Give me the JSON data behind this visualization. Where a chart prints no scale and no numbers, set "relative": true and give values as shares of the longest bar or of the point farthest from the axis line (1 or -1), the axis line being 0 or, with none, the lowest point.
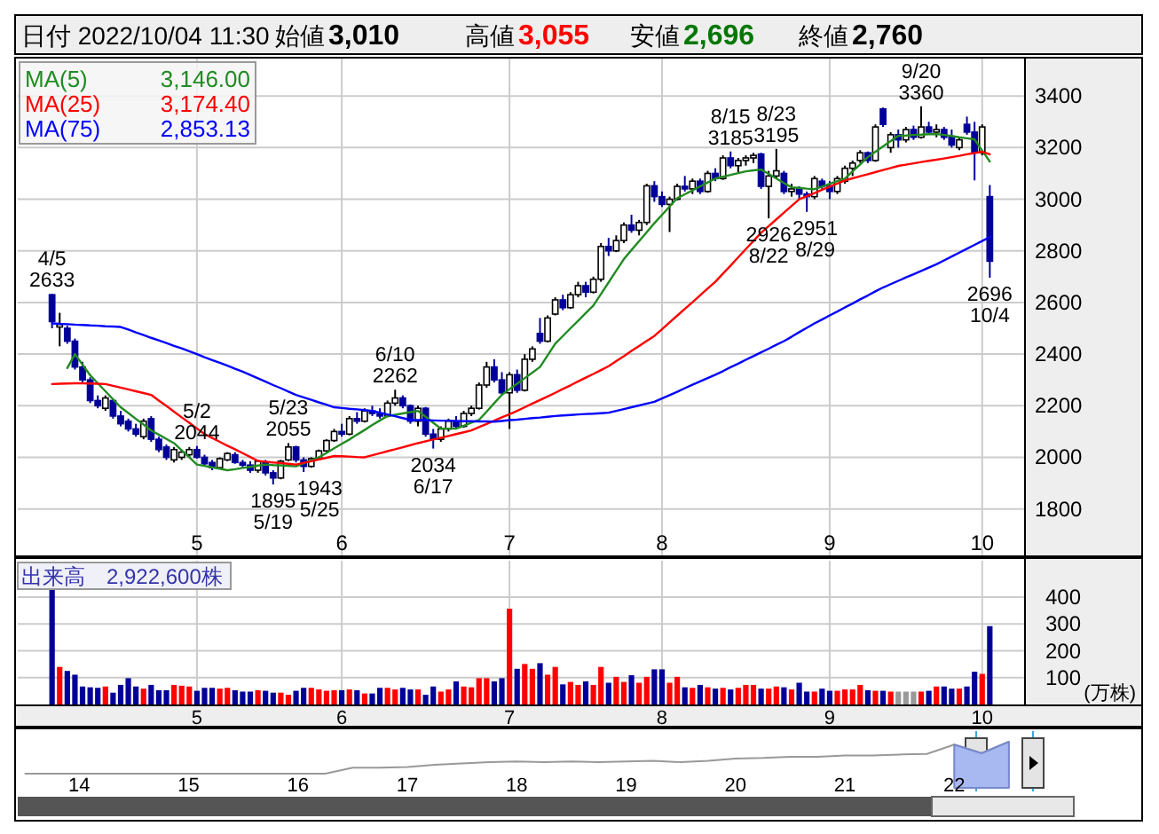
{
  "chart_data": [
    {
      "type": "candlestick",
      "grid": true,
      "ylim": [
        1620,
        3545
      ],
      "yticks": [
        1800,
        2000,
        2200,
        2400,
        2600,
        2800,
        3000,
        3200,
        3400
      ],
      "annotations": [
        "日付 2022/10/04 11:30",
        "始値",
        "3,010",
        "高値",
        "3,055",
        "安値",
        "2,696",
        "終値",
        "2,760",
        {
          "text": "4/5\n2633",
          "y": 2633
        },
        {
          "text": "5/2\n2044",
          "y": 2044
        },
        {
          "text": "1895\n5/19",
          "y": 1895
        },
        {
          "text": "5/23\n2055",
          "y": 2055
        },
        {
          "text": "1943\n5/25",
          "y": 1943
        },
        {
          "text": "6/10\n2262",
          "y": 2262
        },
        {
          "text": "2034\n6/17",
          "y": 2034
        },
        {
          "text": "8/15\n3185",
          "y": 3185
        },
        {
          "text": "2926\n8/22",
          "y": 2926
        },
        {
          "text": "8/23\n3195",
          "y": 3195
        },
        {
          "text": "2951\n8/29",
          "y": 2951
        },
        {
          "text": "9/20\n3360",
          "y": 3360
        },
        {
          "text": "2696\n10/4",
          "y": 2696
        }
      ],
      "categories": [
        null,
        null,
        null,
        null,
        null,
        null,
        null,
        null,
        null,
        null,
        null,
        null,
        null,
        null,
        null,
        null,
        null,
        null,
        null,
        "5",
        null,
        null,
        null,
        null,
        null,
        null,
        null,
        null,
        null,
        null,
        null,
        null,
        null,
        null,
        null,
        null,
        null,
        null,
        "6",
        null,
        null,
        null,
        null,
        null,
        null,
        null,
        null,
        null,
        null,
        null,
        null,
        null,
        null,
        null,
        null,
        null,
        null,
        null,
        null,
        null,
        "7",
        null,
        null,
        null,
        null,
        null,
        null,
        null,
        null,
        null,
        null,
        null,
        null,
        null,
        null,
        null,
        null,
        null,
        null,
        null,
        "8",
        null,
        null,
        null,
        null,
        null,
        null,
        null,
        null,
        null,
        null,
        null,
        null,
        null,
        null,
        null,
        null,
        null,
        null,
        null,
        null,
        null,
        "9",
        null,
        null,
        null,
        null,
        null,
        null,
        null,
        null,
        null,
        null,
        null,
        null,
        null,
        null,
        null,
        null,
        null,
        null,
        null,
        "10",
        null
      ],
      "ohlc": [
        [
          2630,
          2633,
          2500,
          2526
        ],
        [
          2505,
          2560,
          2430,
          2515
        ],
        [
          2500,
          2510,
          2440,
          2450
        ],
        [
          2450,
          2460,
          2340,
          2350
        ],
        [
          2350,
          2370,
          2290,
          2300
        ],
        [
          2300,
          2310,
          2210,
          2220
        ],
        [
          2220,
          2240,
          2190,
          2200
        ],
        [
          2190,
          2240,
          2180,
          2230
        ],
        [
          2220,
          2225,
          2150,
          2160
        ],
        [
          2160,
          2180,
          2120,
          2130
        ],
        [
          2140,
          2150,
          2100,
          2110
        ],
        [
          2110,
          2130,
          2080,
          2090
        ],
        [
          2080,
          2150,
          2070,
          2140
        ],
        [
          2150,
          2160,
          2060,
          2070
        ],
        [
          2070,
          2080,
          2020,
          2030
        ],
        [
          2040,
          2050,
          1990,
          2000
        ],
        [
          1990,
          2040,
          1980,
          2030
        ],
        [
          2000,
          2030,
          1990,
          2020
        ],
        [
          2010,
          2040,
          2000,
          2030
        ],
        [
          2030,
          2044,
          1995,
          2000
        ],
        [
          2000,
          2010,
          1970,
          1975
        ],
        [
          1980,
          1990,
          1950,
          1960
        ],
        [
          1960,
          2000,
          1955,
          1995
        ],
        [
          1990,
          2020,
          1985,
          2015
        ],
        [
          2010,
          2020,
          1975,
          1980
        ],
        [
          1980,
          1990,
          1960,
          1970
        ],
        [
          1970,
          1985,
          1940,
          1950
        ],
        [
          1950,
          1990,
          1940,
          1985
        ],
        [
          1980,
          1990,
          1930,
          1940
        ],
        [
          1940,
          1950,
          1895,
          1920
        ],
        [
          1920,
          1990,
          1915,
          1985
        ],
        [
          1990,
          2055,
          1985,
          2040
        ],
        [
          2040,
          2045,
          1980,
          1990
        ],
        [
          1990,
          2000,
          1943,
          1965
        ],
        [
          1965,
          2000,
          1960,
          1995
        ],
        [
          1995,
          2030,
          1990,
          2025
        ],
        [
          2025,
          2070,
          2020,
          2065
        ],
        [
          2065,
          2110,
          2060,
          2100
        ],
        [
          2100,
          2130,
          2080,
          2090
        ],
        [
          2090,
          2160,
          2085,
          2150
        ],
        [
          2150,
          2175,
          2130,
          2140
        ],
        [
          2140,
          2190,
          2135,
          2180
        ],
        [
          2180,
          2200,
          2160,
          2170
        ],
        [
          2170,
          2190,
          2150,
          2160
        ],
        [
          2160,
          2220,
          2155,
          2210
        ],
        [
          2210,
          2262,
          2200,
          2230
        ],
        [
          2230,
          2240,
          2190,
          2200
        ],
        [
          2200,
          2205,
          2130,
          2140
        ],
        [
          2140,
          2200,
          2120,
          2190
        ],
        [
          2190,
          2195,
          2080,
          2090
        ],
        [
          2090,
          2110,
          2034,
          2070
        ],
        [
          2070,
          2120,
          2060,
          2110
        ],
        [
          2110,
          2150,
          2100,
          2140
        ],
        [
          2140,
          2160,
          2110,
          2120
        ],
        [
          2120,
          2180,
          2115,
          2170
        ],
        [
          2170,
          2200,
          2160,
          2190
        ],
        [
          2190,
          2290,
          2185,
          2280
        ],
        [
          2280,
          2370,
          2270,
          2350
        ],
        [
          2350,
          2380,
          2290,
          2300
        ],
        [
          2300,
          2330,
          2240,
          2250
        ],
        [
          2250,
          2330,
          2110,
          2320
        ],
        [
          2320,
          2340,
          2250,
          2260
        ],
        [
          2260,
          2400,
          2255,
          2380
        ],
        [
          2380,
          2430,
          2370,
          2420
        ],
        [
          2480,
          2540,
          2440,
          2450
        ],
        [
          2450,
          2550,
          2445,
          2540
        ],
        [
          2555,
          2620,
          2550,
          2610
        ],
        [
          2610,
          2630,
          2570,
          2580
        ],
        [
          2580,
          2640,
          2575,
          2630
        ],
        [
          2630,
          2680,
          2620,
          2665
        ],
        [
          2665,
          2680,
          2620,
          2640
        ],
        [
          2640,
          2700,
          2635,
          2690
        ],
        [
          2690,
          2830,
          2680,
          2817
        ],
        [
          2817,
          2850,
          2780,
          2800
        ],
        [
          2800,
          2860,
          2795,
          2840
        ],
        [
          2840,
          2910,
          2830,
          2900
        ],
        [
          2900,
          2940,
          2870,
          2880
        ],
        [
          2880,
          2920,
          2860,
          2910
        ],
        [
          2910,
          3060,
          2900,
          3052
        ],
        [
          3052,
          3070,
          2990,
          3010
        ],
        [
          3010,
          3030,
          2970,
          2980
        ],
        [
          2980,
          3010,
          2873,
          3000
        ],
        [
          3000,
          3060,
          2995,
          3050
        ],
        [
          3050,
          3090,
          3030,
          3040
        ],
        [
          3040,
          3080,
          3020,
          3070
        ],
        [
          3070,
          3080,
          3020,
          3030
        ],
        [
          3030,
          3110,
          3025,
          3100
        ],
        [
          3100,
          3120,
          3070,
          3080
        ],
        [
          3080,
          3170,
          3075,
          3160
        ],
        [
          3160,
          3185,
          3120,
          3130
        ],
        [
          3130,
          3160,
          3100,
          3150
        ],
        [
          3150,
          3170,
          3130,
          3160
        ],
        [
          3160,
          3180,
          3140,
          3170
        ],
        [
          3175,
          3180,
          3040,
          3050
        ],
        [
          3050,
          3110,
          2926,
          3090
        ],
        [
          3090,
          3195,
          3080,
          3110
        ],
        [
          3100,
          3110,
          3020,
          3030
        ],
        [
          3030,
          3060,
          3010,
          3040
        ],
        [
          3040,
          3050,
          3000,
          3020
        ],
        [
          3020,
          3030,
          2951,
          3010
        ],
        [
          3010,
          3090,
          3000,
          3080
        ],
        [
          3070,
          3080,
          3040,
          3050
        ],
        [
          3050,
          3070,
          3000,
          3030
        ],
        [
          3030,
          3090,
          3020,
          3080
        ],
        [
          3070,
          3130,
          3060,
          3120
        ],
        [
          3120,
          3150,
          3090,
          3140
        ],
        [
          3150,
          3190,
          3140,
          3180
        ],
        [
          3180,
          3185,
          3140,
          3150
        ],
        [
          3150,
          3290,
          3145,
          3280
        ],
        [
          3350,
          3355,
          3280,
          3290
        ],
        [
          3200,
          3260,
          3180,
          3250
        ],
        [
          3250,
          3270,
          3200,
          3230
        ],
        [
          3230,
          3280,
          3220,
          3270
        ],
        [
          3270,
          3285,
          3230,
          3240
        ],
        [
          3240,
          3360,
          3235,
          3280
        ],
        [
          3280,
          3300,
          3250,
          3260
        ],
        [
          3260,
          3290,
          3240,
          3270
        ],
        [
          3270,
          3280,
          3230,
          3240
        ],
        [
          3240,
          3270,
          3200,
          3210
        ],
        [
          3200,
          3240,
          3190,
          3230
        ],
        [
          3290,
          3320,
          3250,
          3260
        ],
        [
          3260,
          3300,
          3073,
          3180
        ],
        [
          3180,
          3290,
          3170,
          3280
        ],
        [
          3010,
          3055,
          2696,
          2760
        ]
      ],
      "series": [
        {
          "type": "line",
          "name": "MA(5) 3,146.00",
          "color": "#228b22",
          "values": [
            null,
            null,
            2346,
            2400,
            2359,
            2318,
            2287,
            2256,
            2225,
            2194,
            2172,
            2149,
            2127,
            2104,
            2088,
            2071,
            2055,
            2027,
            2000,
            1972,
            1967,
            1961,
            1956,
            1950,
            1954,
            1959,
            1963,
            1968,
            1972,
            1970,
            1969,
            1967,
            1965,
            1977,
            1988,
            2000,
            2017,
            2035,
            2052,
            2069,
            2088,
            2106,
            2125,
            2143,
            2160,
            2165,
            2170,
            2175,
            2180,
            2157,
            2134,
            2111,
            2111,
            2111,
            2122,
            2134,
            2145,
            2177,
            2210,
            2242,
            2264,
            2285,
            2307,
            2328,
            2350,
            2395,
            2440,
            2470,
            2500,
            2529,
            2559,
            2588,
            2633,
            2678,
            2723,
            2768,
            2803,
            2838,
            2872,
            2907,
            2939,
            2972,
            3004,
            3019,
            3034,
            3050,
            3065,
            3080,
            3087,
            3094,
            3101,
            3108,
            3112,
            3115,
            3098,
            3080,
            3063,
            3046,
            3044,
            3041,
            3039,
            3049,
            3060,
            3070,
            3080,
            3108,
            3135,
            3163,
            3184,
            3205,
            3225,
            3246,
            3247,
            3249,
            3250,
            3252,
            3253,
            3249,
            3245,
            3240,
            3236,
            3232,
            3189,
            3146
          ]
        },
        {
          "type": "line",
          "name": "MA(25) 3,174.40",
          "color": "#ff0000",
          "values": [
            2284,
            2285,
            2286,
            2287,
            2287,
            2286,
            2285,
            2284,
            2277,
            2270,
            2263,
            2256,
            2249,
            2242,
            2220,
            2199,
            2177,
            2155,
            2134,
            2112,
            2090,
            2075,
            2060,
            2045,
            2031,
            2016,
            2001,
            1986,
            1983,
            1980,
            1978,
            1975,
            1972,
            1979,
            1985,
            1992,
            1998,
            2005,
            2004,
            2003,
            2001,
            2000,
            2008,
            2016,
            2024,
            2031,
            2039,
            2047,
            2055,
            2062,
            2069,
            2076,
            2083,
            2090,
            2097,
            2104,
            2117,
            2129,
            2142,
            2155,
            2167,
            2180,
            2194,
            2208,
            2222,
            2236,
            2250,
            2265,
            2279,
            2294,
            2309,
            2323,
            2338,
            2353,
            2373,
            2392,
            2412,
            2431,
            2451,
            2470,
            2496,
            2523,
            2549,
            2575,
            2601,
            2628,
            2654,
            2680,
            2712,
            2743,
            2775,
            2807,
            2838,
            2870,
            2896,
            2922,
            2948,
            2974,
            3000,
            3012,
            3024,
            3037,
            3049,
            3061,
            3073,
            3081,
            3089,
            3097,
            3105,
            3113,
            3121,
            3129,
            3134,
            3139,
            3144,
            3149,
            3153,
            3158,
            3163,
            3168,
            3174,
            3179,
            3184,
            3174
          ]
        },
        {
          "type": "line",
          "name": "MA(75) 2,853.13",
          "color": "#0000ff",
          "values": [
            2519,
            2517,
            2516,
            2514,
            2513,
            2511,
            2510,
            2508,
            2507,
            2505,
            2495,
            2484,
            2474,
            2463,
            2453,
            2443,
            2432,
            2422,
            2411,
            2400,
            2388,
            2377,
            2366,
            2355,
            2343,
            2332,
            2319,
            2306,
            2293,
            2280,
            2268,
            2255,
            2242,
            2232,
            2223,
            2213,
            2204,
            2194,
            2191,
            2188,
            2186,
            2183,
            2180,
            2173,
            2166,
            2159,
            2152,
            2145,
            2144,
            2144,
            2143,
            2142,
            2142,
            2141,
            2140,
            2140,
            2139,
            2139,
            2138,
            2141,
            2144,
            2146,
            2149,
            2152,
            2154,
            2157,
            2160,
            2162,
            2164,
            2166,
            2168,
            2169,
            2171,
            2173,
            2180,
            2187,
            2194,
            2201,
            2208,
            2215,
            2228,
            2241,
            2254,
            2268,
            2281,
            2294,
            2307,
            2320,
            2334,
            2349,
            2363,
            2378,
            2392,
            2407,
            2421,
            2436,
            2450,
            2467,
            2485,
            2502,
            2519,
            2534,
            2550,
            2565,
            2581,
            2596,
            2612,
            2627,
            2643,
            2658,
            2671,
            2684,
            2697,
            2709,
            2722,
            2735,
            2748,
            2763,
            2778,
            2793,
            2808,
            2823,
            2838,
            2853
          ]
        }
      ]
    },
    {
      "type": "bar",
      "title": "出来高　2,922,600株",
      "ylabel": "(万株)",
      "grid": true,
      "ylim": [
        0,
        536
      ],
      "yticks": [
        100,
        200,
        300,
        400
      ],
      "categories": [
        null,
        null,
        null,
        null,
        null,
        null,
        null,
        null,
        null,
        null,
        null,
        null,
        null,
        null,
        null,
        null,
        null,
        null,
        null,
        "5",
        null,
        null,
        null,
        null,
        null,
        null,
        null,
        null,
        null,
        null,
        null,
        null,
        null,
        null,
        null,
        null,
        null,
        null,
        "6",
        null,
        null,
        null,
        null,
        null,
        null,
        null,
        null,
        null,
        null,
        null,
        null,
        null,
        null,
        null,
        null,
        null,
        null,
        null,
        null,
        null,
        "7",
        null,
        null,
        null,
        null,
        null,
        null,
        null,
        null,
        null,
        null,
        null,
        null,
        null,
        null,
        null,
        null,
        null,
        null,
        null,
        "8",
        null,
        null,
        null,
        null,
        null,
        null,
        null,
        null,
        null,
        null,
        null,
        null,
        null,
        null,
        null,
        null,
        null,
        null,
        null,
        null,
        null,
        "9",
        null,
        null,
        null,
        null,
        null,
        null,
        null,
        null,
        null,
        null,
        null,
        null,
        null,
        null,
        null,
        null,
        null,
        null,
        null,
        "10",
        null
      ],
      "values": [
        438,
        140,
        125,
        111,
        67,
        64,
        62,
        67,
        44,
        73,
        98,
        67,
        59,
        73,
        53,
        53,
        73,
        70,
        67,
        51,
        62,
        62,
        59,
        62,
        53,
        48,
        48,
        53,
        51,
        44,
        44,
        36,
        51,
        62,
        62,
        56,
        51,
        53,
        53,
        56,
        53,
        41,
        41,
        62,
        62,
        56,
        62,
        56,
        56,
        36,
        67,
        48,
        56,
        86,
        67,
        64,
        98,
        98,
        86,
        98,
        357,
        133,
        151,
        133,
        154,
        111,
        140,
        75,
        84,
        73,
        86,
        73,
        140,
        81,
        103,
        84,
        109,
        81,
        103,
        131,
        131,
        81,
        103,
        64,
        62,
        73,
        64,
        59,
        62,
        56,
        62,
        73,
        73,
        59,
        59,
        67,
        64,
        56,
        81,
        48,
        48,
        59,
        51,
        51,
        56,
        56,
        73,
        53,
        51,
        51,
        48,
        48,
        48,
        48,
        48,
        51,
        67,
        67,
        59,
        59,
        67,
        122,
        114,
        292
      ],
      "colors": [
        "#000099",
        "#ff0000",
        "#000099",
        "#000099",
        "#000099",
        "#000099",
        "#000099",
        "#ff0000",
        "#000099",
        "#000099",
        "#000099",
        "#000099",
        "#ff0000",
        "#000099",
        "#000099",
        "#000099",
        "#ff0000",
        "#ff0000",
        "#ff0000",
        "#000099",
        "#000099",
        "#000099",
        "#ff0000",
        "#ff0000",
        "#000099",
        "#000099",
        "#000099",
        "#ff0000",
        "#000099",
        "#000099",
        "#ff0000",
        "#ff0000",
        "#000099",
        "#000099",
        "#ff0000",
        "#ff0000",
        "#ff0000",
        "#ff0000",
        "#000099",
        "#ff0000",
        "#000099",
        "#ff0000",
        "#000099",
        "#000099",
        "#ff0000",
        "#ff0000",
        "#000099",
        "#000099",
        "#ff0000",
        "#000099",
        "#000099",
        "#ff0000",
        "#ff0000",
        "#000099",
        "#ff0000",
        "#ff0000",
        "#ff0000",
        "#ff0000",
        "#000099",
        "#000099",
        "#ff0000",
        "#000099",
        "#ff0000",
        "#ff0000",
        "#000099",
        "#ff0000",
        "#ff0000",
        "#000099",
        "#ff0000",
        "#ff0000",
        "#000099",
        "#ff0000",
        "#ff0000",
        "#000099",
        "#ff0000",
        "#ff0000",
        "#000099",
        "#ff0000",
        "#ff0000",
        "#000099",
        "#000099",
        "#ff0000",
        "#ff0000",
        "#000099",
        "#ff0000",
        "#000099",
        "#ff0000",
        "#000099",
        "#ff0000",
        "#000099",
        "#ff0000",
        "#ff0000",
        "#ff0000",
        "#000099",
        "#ff0000",
        "#ff0000",
        "#000099",
        "#ff0000",
        "#000099",
        "#000099",
        "#ff0000",
        "#000099",
        "#000099",
        "#ff0000",
        "#ff0000",
        "#ff0000",
        "#ff0000",
        "#000099",
        "#ff0000",
        "#000099",
        "#ff0000",
        "#999999",
        "#999999",
        "#999999",
        "#ff0000",
        "#000099",
        "#ff0000",
        "#000099",
        "#000099",
        "#ff0000",
        "#000099",
        "#000099",
        "#ff0000",
        "#000099"
      ]
    },
    {
      "type": "line",
      "relative": true,
      "categories": [
        null,
        null,
        "14",
        null,
        null,
        null,
        "15",
        null,
        null,
        null,
        "16",
        null,
        null,
        null,
        "17",
        null,
        null,
        null,
        "18",
        null,
        null,
        null,
        "19",
        null,
        null,
        null,
        "20",
        null,
        null,
        null,
        "21",
        null,
        null,
        null,
        "22",
        null,
        null
      ],
      "series": [
        {
          "type": "line",
          "color": "#999999",
          "values": [
            0,
            0,
            0,
            0,
            0,
            0,
            0,
            0,
            0,
            0,
            0,
            0,
            0.19,
            0.19,
            0.21,
            0.28,
            0.32,
            0.36,
            0.38,
            0.36,
            0.38,
            0.36,
            0.38,
            0.4,
            0.36,
            0.4,
            0.47,
            0.49,
            0.53,
            0.53,
            0.57,
            0.57,
            0.6,
            0.62,
            0.91,
            0.64,
            1
          ]
        },
        {
          "type": "area",
          "color": "#a8b8f0",
          "values": [
            null,
            null,
            null,
            null,
            null,
            null,
            null,
            null,
            null,
            null,
            null,
            null,
            null,
            null,
            null,
            null,
            null,
            null,
            null,
            null,
            null,
            null,
            null,
            null,
            null,
            null,
            null,
            null,
            null,
            null,
            null,
            null,
            null,
            null,
            0.91,
            0.64,
            1
          ]
        }
      ]
    }
  ]
}
